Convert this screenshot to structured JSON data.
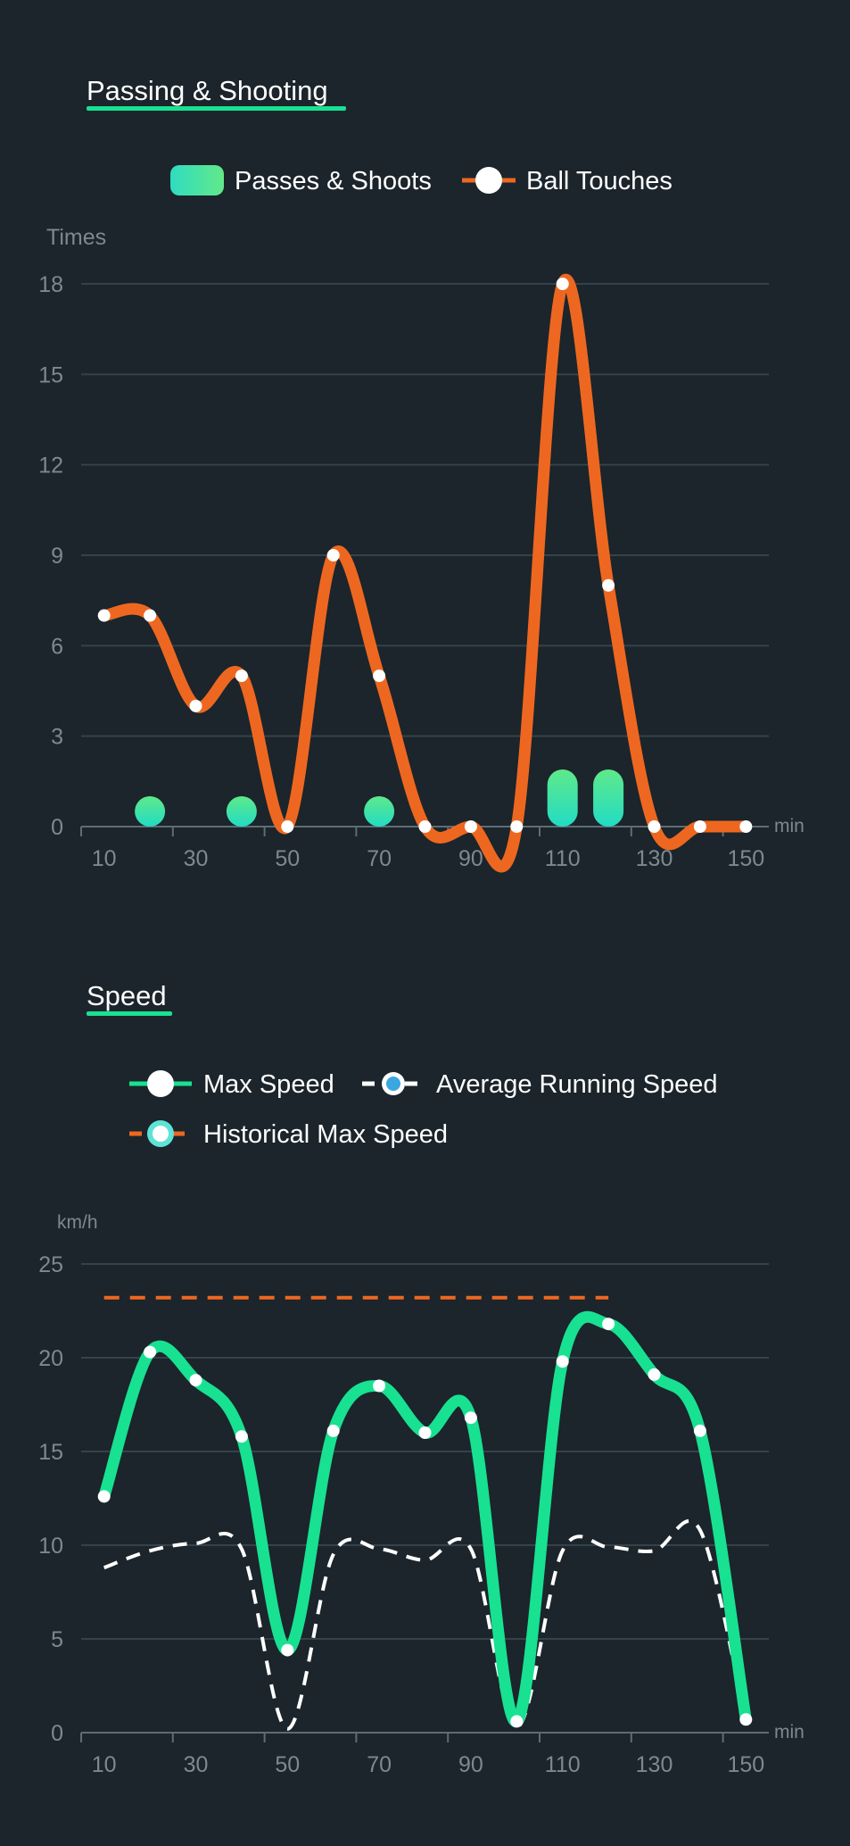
{
  "colors": {
    "background": "#1b252b",
    "accent_green": "#18e191",
    "ball_touches": "#ee6721",
    "grid": "#36424a",
    "axis": "#5f6c73",
    "tick_text": "#7d8990",
    "text": "#ffffff",
    "avg_marker": "#3aa7e0"
  },
  "charts": [
    {
      "id": "passing",
      "chart_data": {
        "type": "bar+line",
        "title": "Passing & Shooting",
        "ylabel": "Times",
        "xlabel": "min",
        "x_ticks": [
          10,
          30,
          50,
          70,
          90,
          110,
          130,
          150
        ],
        "y_ticks": [
          0,
          3,
          6,
          9,
          12,
          15,
          18
        ],
        "xlim": [
          5,
          155
        ],
        "ylim": [
          0,
          18
        ],
        "legend": [
          "Passes & Shoots",
          "Ball Touches"
        ],
        "series": [
          {
            "name": "Passes & Shoots",
            "type": "bar",
            "x": [
              20,
              40,
              70,
              110,
              120
            ],
            "values": [
              1,
              1,
              1,
              2,
              2
            ]
          },
          {
            "name": "Ball Touches",
            "type": "line",
            "x": [
              10,
              20,
              30,
              40,
              50,
              60,
              70,
              80,
              90,
              100,
              110,
              120,
              130,
              140,
              150
            ],
            "values": [
              7,
              7,
              4,
              5,
              0,
              9,
              5,
              0,
              0,
              0,
              18,
              8,
              0,
              0,
              0
            ]
          }
        ]
      }
    },
    {
      "id": "speed",
      "chart_data": {
        "type": "line",
        "title": "Speed",
        "ylabel": "km/h",
        "xlabel": "min",
        "x_ticks": [
          10,
          30,
          50,
          70,
          90,
          110,
          130,
          150
        ],
        "y_ticks": [
          0,
          5,
          10,
          15,
          20,
          25
        ],
        "xlim": [
          5,
          155
        ],
        "ylim": [
          0,
          25
        ],
        "legend": [
          "Max Speed",
          "Average Running Speed",
          "Historical Max Speed"
        ],
        "series": [
          {
            "name": "Max Speed",
            "x": [
              10,
              20,
              30,
              40,
              50,
              60,
              70,
              80,
              90,
              100,
              110,
              120,
              130,
              140,
              150
            ],
            "values": [
              12.6,
              20.3,
              18.8,
              15.8,
              4.4,
              16.1,
              18.5,
              16.0,
              16.8,
              0.6,
              19.8,
              21.8,
              19.1,
              16.1,
              0.7
            ]
          },
          {
            "name": "Average Running Speed",
            "x": [
              10,
              20,
              30,
              40,
              50,
              60,
              70,
              80,
              90,
              100,
              110,
              120,
              130,
              140,
              150
            ],
            "values": [
              8.8,
              9.7,
              10.1,
              9.8,
              0.2,
              9.5,
              9.8,
              9.2,
              9.8,
              0.3,
              9.7,
              9.9,
              9.7,
              10.8,
              0.6
            ]
          },
          {
            "name": "Historical Max Speed",
            "x": [
              10,
              120
            ],
            "values": [
              23.2,
              23.2
            ]
          }
        ]
      }
    }
  ]
}
